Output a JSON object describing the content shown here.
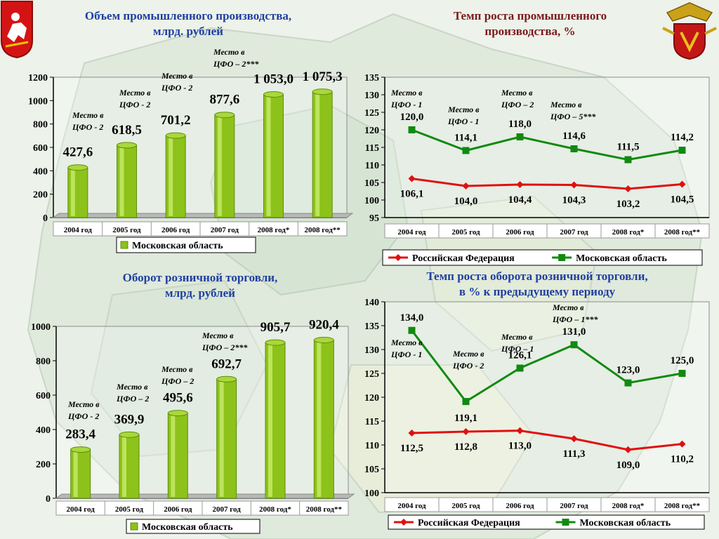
{
  "emblems": {
    "left": "moscow-region-coat-of-arms-icon",
    "right": "ministry-emblem-icon"
  },
  "colors": {
    "bar": "#8cc21a",
    "bar_dark": "#5f8c0c",
    "bar_light": "#c8ec6c",
    "title_left": "#1f3fa0",
    "title_right": "#7a1a1a",
    "rf_line": "#e01010",
    "mo_line": "#108a10"
  },
  "chart_data": [
    {
      "type": "bar",
      "title": "Объем промышленного производства,\nмлрд. рублей",
      "categories": [
        "2004 год",
        "2005 год",
        "2006 год",
        "2007 год",
        "2008 год*",
        "2008 год**"
      ],
      "series": [
        {
          "name": "Московская область",
          "values": [
            427.6,
            618.5,
            701.2,
            877.6,
            1053.0,
            1075.3
          ]
        }
      ],
      "value_labels": [
        "427,6",
        "618,5",
        "701,2",
        "877,6",
        "1 053,0",
        "1 075,3"
      ],
      "annotations": [
        {
          "index": 0,
          "text": [
            "Место в",
            "ЦФО - 2"
          ]
        },
        {
          "index": 1,
          "text": [
            "Место в",
            "ЦФО - 2"
          ]
        },
        {
          "index": 2,
          "text": [
            "Место в",
            "ЦФО - 2"
          ]
        },
        {
          "index": 3,
          "text": [
            "Место в",
            "ЦФО – 2***"
          ]
        }
      ],
      "ylim": [
        0,
        1200
      ],
      "yticks": [
        0,
        200,
        400,
        600,
        800,
        1000,
        1200
      ],
      "legend": "bottom"
    },
    {
      "type": "line",
      "title": "Темп роста промышленного\nпроизводства, %",
      "categories": [
        "2004 год",
        "2005 год",
        "2006 год",
        "2007 год",
        "2008 год*",
        "2008 год**"
      ],
      "series": [
        {
          "name": "Российская Федерация",
          "values": [
            106.1,
            104.0,
            104.4,
            104.3,
            103.2,
            104.5
          ],
          "labels": [
            "106,1",
            "104,0",
            "104,4",
            "104,3",
            "103,2",
            "104,5"
          ]
        },
        {
          "name": "Московская область",
          "values": [
            120.0,
            114.1,
            118.0,
            114.6,
            111.5,
            114.2
          ],
          "labels": [
            "120,0",
            "114,1",
            "118,0",
            "114,6",
            "111,5",
            "114,2"
          ]
        }
      ],
      "annotations": [
        {
          "index": 0,
          "text": [
            "Место в",
            "ЦФО - 1"
          ]
        },
        {
          "index": 1,
          "text": [
            "Место в",
            "ЦФО - 1"
          ]
        },
        {
          "index": 2,
          "text": [
            "Место в",
            "ЦФО – 2"
          ]
        },
        {
          "index": 3,
          "text": [
            "Место в",
            "ЦФО – 5***"
          ]
        }
      ],
      "ylim": [
        95,
        135
      ],
      "yticks": [
        95,
        100,
        105,
        110,
        115,
        120,
        125,
        130,
        135
      ],
      "legend": "bottom"
    },
    {
      "type": "bar",
      "title": "Оборот розничной торговли,\nмлрд. рублей",
      "categories": [
        "2004 год",
        "2005 год",
        "2006 год",
        "2007 год",
        "2008 год*",
        "2008 год**"
      ],
      "series": [
        {
          "name": "Московская область",
          "values": [
            283.4,
            369.9,
            495.6,
            692.7,
            905.7,
            920.4
          ]
        }
      ],
      "value_labels": [
        "283,4",
        "369,9",
        "495,6",
        "692,7",
        "905,7",
        "920,4"
      ],
      "annotations": [
        {
          "index": 0,
          "text": [
            "Место в",
            "ЦФО - 2"
          ]
        },
        {
          "index": 1,
          "text": [
            "Место в",
            "ЦФО – 2"
          ]
        },
        {
          "index": 2,
          "text": [
            "Место в",
            "ЦФО – 2"
          ]
        },
        {
          "index": 3,
          "text": [
            "Место в",
            "ЦФО – 2***"
          ]
        }
      ],
      "ylim": [
        0,
        1000
      ],
      "yticks": [
        0,
        200,
        400,
        600,
        800,
        1000
      ],
      "legend": "bottom"
    },
    {
      "type": "line",
      "title": "Темп роста оборота розничной торговли,\nв % к предыдущему периоду",
      "categories": [
        "2004 год",
        "2005 год",
        "2006 год",
        "2007 год",
        "2008 год*",
        "2008 год**"
      ],
      "series": [
        {
          "name": "Российская Федерация",
          "values": [
            112.5,
            112.8,
            113.0,
            111.3,
            109.0,
            110.2
          ],
          "labels": [
            "112,5",
            "112,8",
            "113,0",
            "111,3",
            "109,0",
            "110,2"
          ]
        },
        {
          "name": "Московская область",
          "values": [
            134.0,
            119.1,
            126.1,
            131.0,
            123.0,
            125.0
          ],
          "labels": [
            "134,0",
            "119,1",
            "126,1",
            "131,0",
            "123,0",
            "125,0"
          ]
        }
      ],
      "annotations": [
        {
          "index": 0,
          "text": [
            "Место в",
            "ЦФО - 1"
          ]
        },
        {
          "index": 1,
          "text": [
            "Место в",
            "ЦФО - 2"
          ]
        },
        {
          "index": 2,
          "text": [
            "Место в",
            "ЦФО – 1"
          ]
        },
        {
          "index": 3,
          "text": [
            "Место в",
            "ЦФО – 1***"
          ]
        }
      ],
      "ylim": [
        100,
        140
      ],
      "yticks": [
        100,
        105,
        110,
        115,
        120,
        125,
        130,
        135,
        140
      ],
      "legend": "bottom"
    }
  ]
}
